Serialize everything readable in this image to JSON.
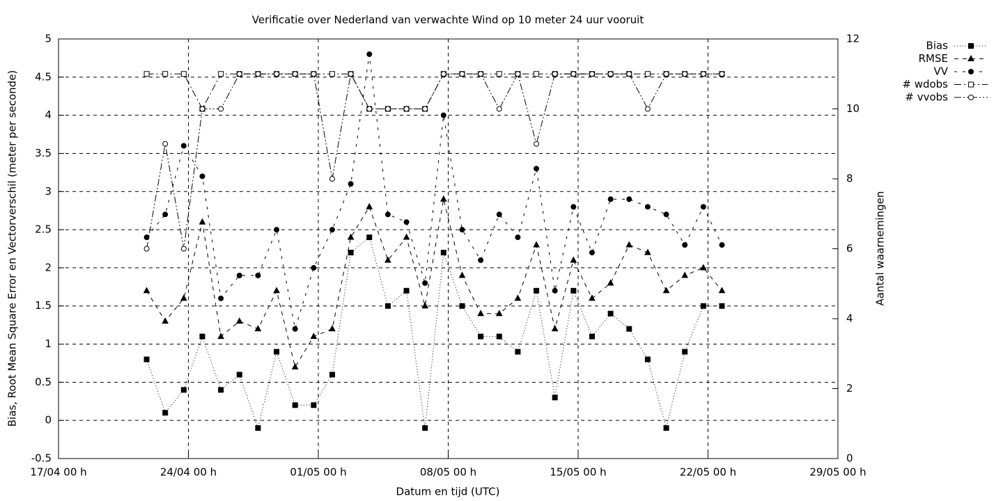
{
  "chart_data": {
    "type": "line",
    "title": "Verificatie over Nederland van verwachte Wind op 10 meter 24 uur vooruit",
    "x_label": "Datum en tijd (UTC)",
    "y_label": "Bias, Root Mean Square Error en Vectorverschil (meter per seconde)",
    "y2_label": "Aantal waarnemingen",
    "x": [
      "21/04 18 h",
      "22/04 18 h",
      "23/04 18 h",
      "24/04 18 h",
      "25/04 18 h",
      "26/04 18 h",
      "27/04 18 h",
      "28/04 18 h",
      "29/04 18 h",
      "30/04 18 h",
      "01/05 18 h",
      "02/05 18 h",
      "03/05 18 h",
      "04/05 18 h",
      "05/05 18 h",
      "06/05 18 h",
      "07/05 18 h",
      "08/05 18 h",
      "09/05 18 h",
      "10/05 18 h",
      "11/05 18 h",
      "12/05 18 h",
      "13/05 18 h",
      "14/05 18 h",
      "15/05 18 h",
      "16/05 18 h",
      "17/05 18 h",
      "18/05 18 h",
      "19/05 18 h",
      "20/05 18 h",
      "21/05 18 h",
      "22/05 18 h"
    ],
    "xlim": [
      "17/04 00 h",
      "29/05 00 h"
    ],
    "xticks": [
      "17/04 00 h",
      "24/04 00 h",
      "01/05 00 h",
      "08/05 00 h",
      "15/05 00 h",
      "22/05 00 h",
      "29/05 00 h"
    ],
    "ylim": [
      -0.5,
      5
    ],
    "yticks": [
      -0.5,
      0,
      0.5,
      1,
      1.5,
      2,
      2.5,
      3,
      3.5,
      4,
      4.5,
      5
    ],
    "y2lim": [
      0,
      12
    ],
    "y2ticks": [
      0,
      2,
      4,
      6,
      8,
      10,
      12
    ],
    "grid": true,
    "legend": "top-right",
    "series": [
      {
        "name": "Bias",
        "color": "#000000",
        "marker": "filled-square",
        "line_style": "dotted",
        "values": [
          0.8,
          0.1,
          0.4,
          1.1,
          0.4,
          0.6,
          -0.1,
          0.9,
          0.2,
          0.2,
          0.6,
          2.2,
          2.4,
          1.5,
          1.7,
          -0.1,
          2.2,
          1.5,
          1.1,
          1.1,
          0.9,
          1.7,
          0.3,
          1.7,
          1.1,
          1.4,
          1.2,
          0.8,
          -0.1,
          0.9,
          1.5,
          1.5
        ]
      },
      {
        "name": "RMSE",
        "color": "#000000",
        "marker": "filled-triangle",
        "line_style": "dashed",
        "values": [
          1.7,
          1.3,
          1.6,
          2.6,
          1.1,
          1.3,
          1.2,
          1.7,
          0.7,
          1.1,
          1.2,
          2.4,
          2.8,
          2.1,
          2.4,
          1.5,
          2.9,
          1.9,
          1.4,
          1.4,
          1.6,
          2.3,
          1.2,
          2.1,
          1.6,
          1.8,
          2.3,
          2.2,
          1.7,
          1.9,
          2.0,
          1.7
        ]
      },
      {
        "name": "VV",
        "color": "#000000",
        "marker": "filled-circle",
        "line_style": "long-dashed",
        "values": [
          2.4,
          2.7,
          3.6,
          3.2,
          1.6,
          1.9,
          1.9,
          2.5,
          1.2,
          2.0,
          2.5,
          3.1,
          4.8,
          2.7,
          2.6,
          1.8,
          4.0,
          2.5,
          2.1,
          2.7,
          2.4,
          3.3,
          1.7,
          2.8,
          2.2,
          2.9,
          2.9,
          2.8,
          2.7,
          2.3,
          2.8,
          2.3
        ]
      },
      {
        "name": "# wdobs",
        "color": "#000000",
        "marker": "open-square",
        "line_style": "dash-dot",
        "axis": "y2",
        "values": [
          11,
          11,
          11,
          10,
          11,
          11,
          11,
          11,
          11,
          11,
          11,
          11,
          10,
          10,
          10,
          10,
          11,
          11,
          11,
          11,
          11,
          11,
          11,
          11,
          11,
          11,
          11,
          11,
          11,
          11,
          11,
          11
        ]
      },
      {
        "name": "# vvobs",
        "color": "#000000",
        "marker": "open-circle",
        "line_style": "dash-dot-dot",
        "axis": "y2",
        "values": [
          6,
          9,
          6,
          10,
          10,
          11,
          11,
          11,
          11,
          11,
          8,
          11,
          10,
          10,
          10,
          10,
          11,
          11,
          11,
          10,
          11,
          9,
          11,
          11,
          11,
          11,
          11,
          10,
          11,
          11,
          11,
          11
        ]
      }
    ]
  }
}
